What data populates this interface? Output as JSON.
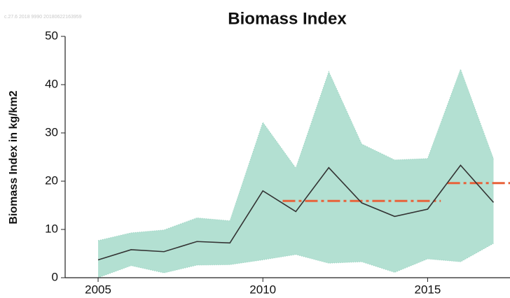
{
  "chart_data": {
    "type": "line",
    "title": "Biomass Index",
    "stamp": "c.27.6 2018 9990 20180622163959",
    "y_label": "Biomass Index in kg/km2",
    "x": [
      2005,
      2006,
      2007,
      2008,
      2009,
      2010,
      2011,
      2012,
      2013,
      2014,
      2015,
      2016,
      2017
    ],
    "series": [
      {
        "name": "Index",
        "role": "line",
        "color": "#333333",
        "values": [
          3.7,
          5.8,
          5.4,
          7.5,
          7.2,
          18.0,
          13.7,
          22.8,
          15.5,
          12.7,
          14.2,
          23.3,
          15.6
        ]
      },
      {
        "name": "Upper",
        "role": "upper",
        "color": "#b3e0d2",
        "values": [
          7.7,
          9.3,
          9.9,
          12.4,
          11.8,
          32.2,
          22.7,
          42.7,
          27.7,
          24.4,
          24.7,
          43.2,
          24.6
        ]
      },
      {
        "name": "Lower",
        "role": "lower",
        "color": "#b3e0d2",
        "values": [
          0,
          2.5,
          1.0,
          2.6,
          2.7,
          3.7,
          4.8,
          3.0,
          3.3,
          1.1,
          3.9,
          3.3,
          7.1
        ]
      }
    ],
    "reference_lines": [
      {
        "x": [
          2010.6,
          2015.4
        ],
        "y": 15.9,
        "color": "#e8623a"
      },
      {
        "x": [
          2015.6,
          2017.5
        ],
        "y": 19.6,
        "color": "#e8623a"
      }
    ],
    "xlim": [
      2004,
      2017.5
    ],
    "xticks": [
      2005,
      2010,
      2015
    ],
    "ylim": [
      0,
      50
    ],
    "yticks": [
      0,
      10,
      20,
      30,
      40,
      50
    ],
    "grid": false
  }
}
